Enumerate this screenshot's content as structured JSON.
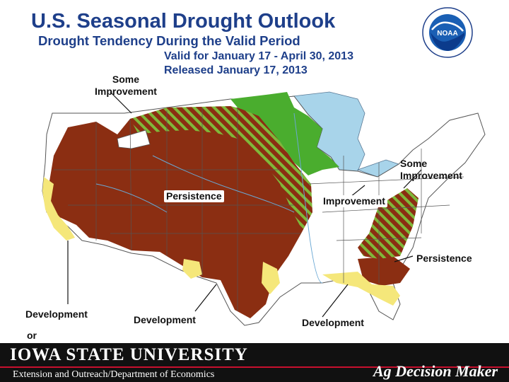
{
  "header": {
    "title": "U.S. Seasonal Drought Outlook",
    "subtitle": "Drought Tendency During the Valid Period",
    "valid_for": "Valid for January 17 - April 30, 2013",
    "released": "Released January 17, 2013"
  },
  "logo": {
    "text": "NOAA"
  },
  "map": {
    "labels": {
      "some_improvement_west": "Some\nImprovement",
      "persistence_central": "Persistence",
      "some_improvement_east": "Some\nImprovement",
      "improvement_east": "Improvement",
      "persistence_southeast": "Persistence",
      "development_west": "Development",
      "development_south": "Development",
      "development_southeast": "Development",
      "or_fragment": "or"
    },
    "colors": {
      "persistence": "#8b2e12",
      "improvement": "#4aad2e",
      "some_improvement_stripe": "#7fb83a",
      "development": "#f5e77a",
      "water": "#a8d4ea",
      "land": "#ffffff"
    }
  },
  "footer": {
    "university": "IOWA STATE UNIVERSITY",
    "department": "Extension and Outreach/Department of Economics",
    "program": "Ag Decision Maker"
  }
}
